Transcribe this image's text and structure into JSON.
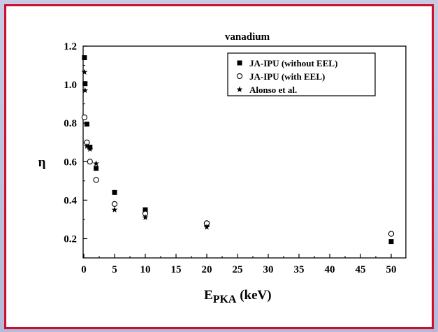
{
  "chart_data": {
    "type": "scatter",
    "title": "vanadium",
    "xlabel": "E",
    "xlabel_sub": "PKA",
    "xlabel_unit": " (keV)",
    "ylabel": "η",
    "xlim": [
      0,
      52
    ],
    "ylim": [
      0.1,
      1.2
    ],
    "x_ticks": [
      0,
      5,
      10,
      15,
      20,
      25,
      30,
      35,
      40,
      45,
      50
    ],
    "x_tick_labels": [
      "0",
      "5",
      "10",
      "15",
      "20",
      "25",
      "30",
      "35",
      "40",
      "45",
      "50"
    ],
    "y_ticks": [
      0.2,
      0.4,
      0.6,
      0.8,
      1.0,
      1.2
    ],
    "y_tick_labels": [
      "0.2",
      "0.4",
      "0.6",
      "0.8",
      "1.0",
      "1.2"
    ],
    "legend_position": "top-right",
    "series": [
      {
        "name": "JA-IPU (without EEL)",
        "marker": "square",
        "points": [
          [
            0.1,
            1.14
          ],
          [
            0.2,
            1.005
          ],
          [
            0.5,
            0.795
          ],
          [
            1.0,
            0.675
          ],
          [
            2.0,
            0.565
          ],
          [
            5.0,
            0.44
          ],
          [
            10.0,
            0.35
          ],
          [
            20.0,
            0.275
          ],
          [
            50.0,
            0.185
          ]
        ]
      },
      {
        "name": "JA-IPU (with EEL)",
        "marker": "circle",
        "points": [
          [
            0.1,
            0.83
          ],
          [
            0.5,
            0.7
          ],
          [
            1.0,
            0.6
          ],
          [
            2.0,
            0.505
          ],
          [
            5.0,
            0.38
          ],
          [
            10.0,
            0.33
          ],
          [
            20.0,
            0.28
          ],
          [
            50.0,
            0.225
          ]
        ]
      },
      {
        "name": "Alonso et al.",
        "marker": "star",
        "points": [
          [
            0.1,
            1.065
          ],
          [
            0.2,
            0.97
          ],
          [
            0.5,
            0.68
          ],
          [
            1.0,
            0.665
          ],
          [
            2.0,
            0.59
          ],
          [
            5.0,
            0.35
          ],
          [
            10.0,
            0.31
          ],
          [
            20.0,
            0.26
          ]
        ]
      }
    ]
  }
}
